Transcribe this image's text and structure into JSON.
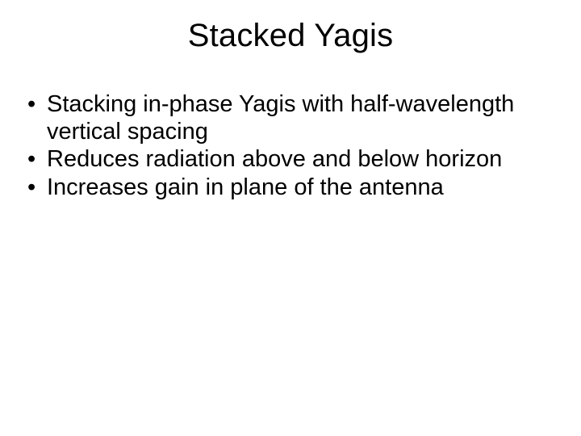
{
  "slide": {
    "title": "Stacked Yagis",
    "bullets": [
      "Stacking in-phase Yagis with half-wavelength vertical spacing",
      "Reduces radiation above and below horizon",
      "Increases gain in plane of the antenna"
    ]
  },
  "style": {
    "background_color": "#ffffff",
    "text_color": "#000000",
    "title_fontsize": 40,
    "body_fontsize": 29,
    "font_family": "Arial"
  }
}
